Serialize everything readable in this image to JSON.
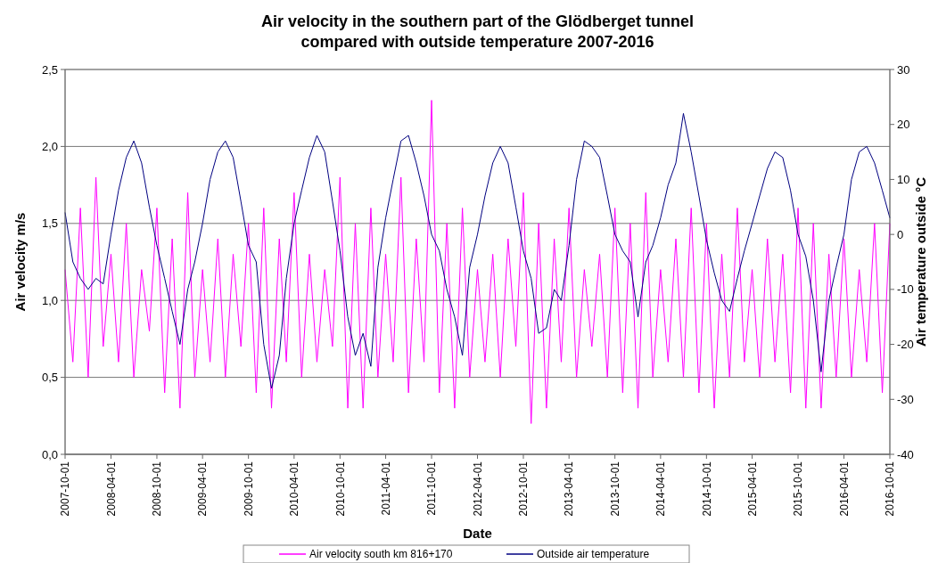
{
  "chart_data": {
    "type": "line",
    "title": "Air  velocity in the southern part of the Glödberget tunnel\ncompared with outside temperature 2007-2016",
    "xlabel": "Date",
    "ylabel": "Air velocity m/s",
    "y2label": "Air temperature outside °C",
    "x": [
      "2007-10-01",
      "2007-11-01",
      "2007-12-01",
      "2008-01-01",
      "2008-02-01",
      "2008-03-01",
      "2008-04-01",
      "2008-05-01",
      "2008-06-01",
      "2008-07-01",
      "2008-08-01",
      "2008-09-01",
      "2008-10-01",
      "2008-11-01",
      "2008-12-01",
      "2009-01-01",
      "2009-02-01",
      "2009-03-01",
      "2009-04-01",
      "2009-05-01",
      "2009-06-01",
      "2009-07-01",
      "2009-08-01",
      "2009-09-01",
      "2009-10-01",
      "2009-11-01",
      "2009-12-01",
      "2010-01-01",
      "2010-02-01",
      "2010-03-01",
      "2010-04-01",
      "2010-05-01",
      "2010-06-01",
      "2010-07-01",
      "2010-08-01",
      "2010-09-01",
      "2010-10-01",
      "2010-11-01",
      "2010-12-01",
      "2011-01-01",
      "2011-02-01",
      "2011-03-01",
      "2011-04-01",
      "2011-05-01",
      "2011-06-01",
      "2011-07-01",
      "2011-08-01",
      "2011-09-01",
      "2011-10-01",
      "2011-11-01",
      "2011-12-01",
      "2012-01-01",
      "2012-02-01",
      "2012-03-01",
      "2012-04-01",
      "2012-05-01",
      "2012-06-01",
      "2012-07-01",
      "2012-08-01",
      "2012-09-01",
      "2012-10-01",
      "2012-11-01",
      "2012-12-01",
      "2013-01-01",
      "2013-02-01",
      "2013-03-01",
      "2013-04-01",
      "2013-05-01",
      "2013-06-01",
      "2013-07-01",
      "2013-08-01",
      "2013-09-01",
      "2013-10-01",
      "2013-11-01",
      "2013-12-01",
      "2014-01-01",
      "2014-02-01",
      "2014-03-01",
      "2014-04-01",
      "2014-05-01",
      "2014-06-01",
      "2014-07-01",
      "2014-08-01",
      "2014-09-01",
      "2014-10-01",
      "2014-11-01",
      "2014-12-01",
      "2015-01-01",
      "2015-02-01",
      "2015-03-01",
      "2015-04-01",
      "2015-05-01",
      "2015-06-01",
      "2015-07-01",
      "2015-08-01",
      "2015-09-01",
      "2015-10-01",
      "2015-11-01",
      "2015-12-01",
      "2016-01-01",
      "2016-02-01",
      "2016-03-01",
      "2016-04-01",
      "2016-05-01",
      "2016-06-01",
      "2016-07-01",
      "2016-08-01",
      "2016-09-01",
      "2016-10-01"
    ],
    "series": [
      {
        "name": "Air velocity south km 816+170",
        "color": "#ff00ff",
        "values": [
          1.2,
          0.6,
          1.6,
          0.5,
          1.8,
          0.7,
          1.3,
          0.6,
          1.5,
          0.5,
          1.2,
          0.8,
          1.6,
          0.4,
          1.4,
          0.3,
          1.7,
          0.5,
          1.2,
          0.6,
          1.4,
          0.5,
          1.3,
          0.7,
          1.5,
          0.4,
          1.6,
          0.3,
          1.4,
          0.6,
          1.7,
          0.5,
          1.3,
          0.6,
          1.2,
          0.7,
          1.8,
          0.3,
          1.5,
          0.3,
          1.6,
          0.5,
          1.3,
          0.6,
          1.8,
          0.4,
          1.4,
          0.6,
          2.3,
          0.4,
          1.5,
          0.3,
          1.6,
          0.5,
          1.2,
          0.6,
          1.3,
          0.5,
          1.4,
          0.7,
          1.7,
          0.2,
          1.5,
          0.3,
          1.4,
          0.6,
          1.6,
          0.5,
          1.2,
          0.7,
          1.3,
          0.5,
          1.6,
          0.4,
          1.5,
          0.3,
          1.7,
          0.5,
          1.2,
          0.6,
          1.4,
          0.5,
          1.6,
          0.4,
          1.5,
          0.3,
          1.3,
          0.5,
          1.6,
          0.6,
          1.2,
          0.5,
          1.4,
          0.6,
          1.3,
          0.4,
          1.6,
          0.3,
          1.5,
          0.3,
          1.3,
          0.5,
          1.4,
          0.5,
          1.2,
          0.6,
          1.5,
          0.4,
          1.5
        ]
      },
      {
        "name": "Outside air temperature",
        "color": "#000080",
        "axis": "y2",
        "values": [
          4,
          -5,
          -8,
          -10,
          -8,
          -9,
          0,
          8,
          14,
          17,
          13,
          5,
          -2,
          -8,
          -14,
          -20,
          -10,
          -5,
          2,
          10,
          15,
          17,
          14,
          6,
          -2,
          -5,
          -20,
          -28,
          -22,
          -8,
          2,
          8,
          14,
          18,
          15,
          6,
          -3,
          -15,
          -22,
          -18,
          -24,
          -6,
          3,
          10,
          17,
          18,
          13,
          7,
          0,
          -3,
          -10,
          -15,
          -22,
          -6,
          0,
          7,
          13,
          16,
          13,
          5,
          -3,
          -8,
          -18,
          -17,
          -10,
          -12,
          -2,
          10,
          17,
          16,
          14,
          7,
          0,
          -3,
          -5,
          -15,
          -5,
          -2,
          3,
          9,
          13,
          22,
          15,
          7,
          -1,
          -7,
          -12,
          -14,
          -8,
          -3,
          2,
          7,
          12,
          15,
          14,
          8,
          0,
          -4,
          -12,
          -25,
          -12,
          -6,
          0,
          10,
          15,
          16,
          13,
          8,
          3
        ]
      }
    ],
    "xlim": [
      "2007-10-01",
      "2016-10-01"
    ],
    "xticks": [
      "2007-10-01",
      "2008-04-01",
      "2008-10-01",
      "2009-04-01",
      "2009-10-01",
      "2010-04-01",
      "2010-10-01",
      "2011-04-01",
      "2011-10-01",
      "2012-04-01",
      "2012-10-01",
      "2013-04-01",
      "2013-10-01",
      "2014-04-01",
      "2014-10-01",
      "2015-04-01",
      "2015-10-01",
      "2016-04-01",
      "2016-10-01"
    ],
    "ylim": [
      0,
      2.5
    ],
    "yticks": [
      {
        "value": 0,
        "label": "0,0"
      },
      {
        "value": 0.5,
        "label": "0,5"
      },
      {
        "value": 1,
        "label": "1,0"
      },
      {
        "value": 1.5,
        "label": "1,5"
      },
      {
        "value": 2,
        "label": "2,0"
      },
      {
        "value": 2.5,
        "label": "2,5"
      }
    ],
    "y2lim": [
      -40,
      30
    ],
    "y2ticks": [
      -40,
      -30,
      -20,
      -10,
      0,
      10,
      20,
      30
    ],
    "grid": "y",
    "legend": "bottom"
  }
}
